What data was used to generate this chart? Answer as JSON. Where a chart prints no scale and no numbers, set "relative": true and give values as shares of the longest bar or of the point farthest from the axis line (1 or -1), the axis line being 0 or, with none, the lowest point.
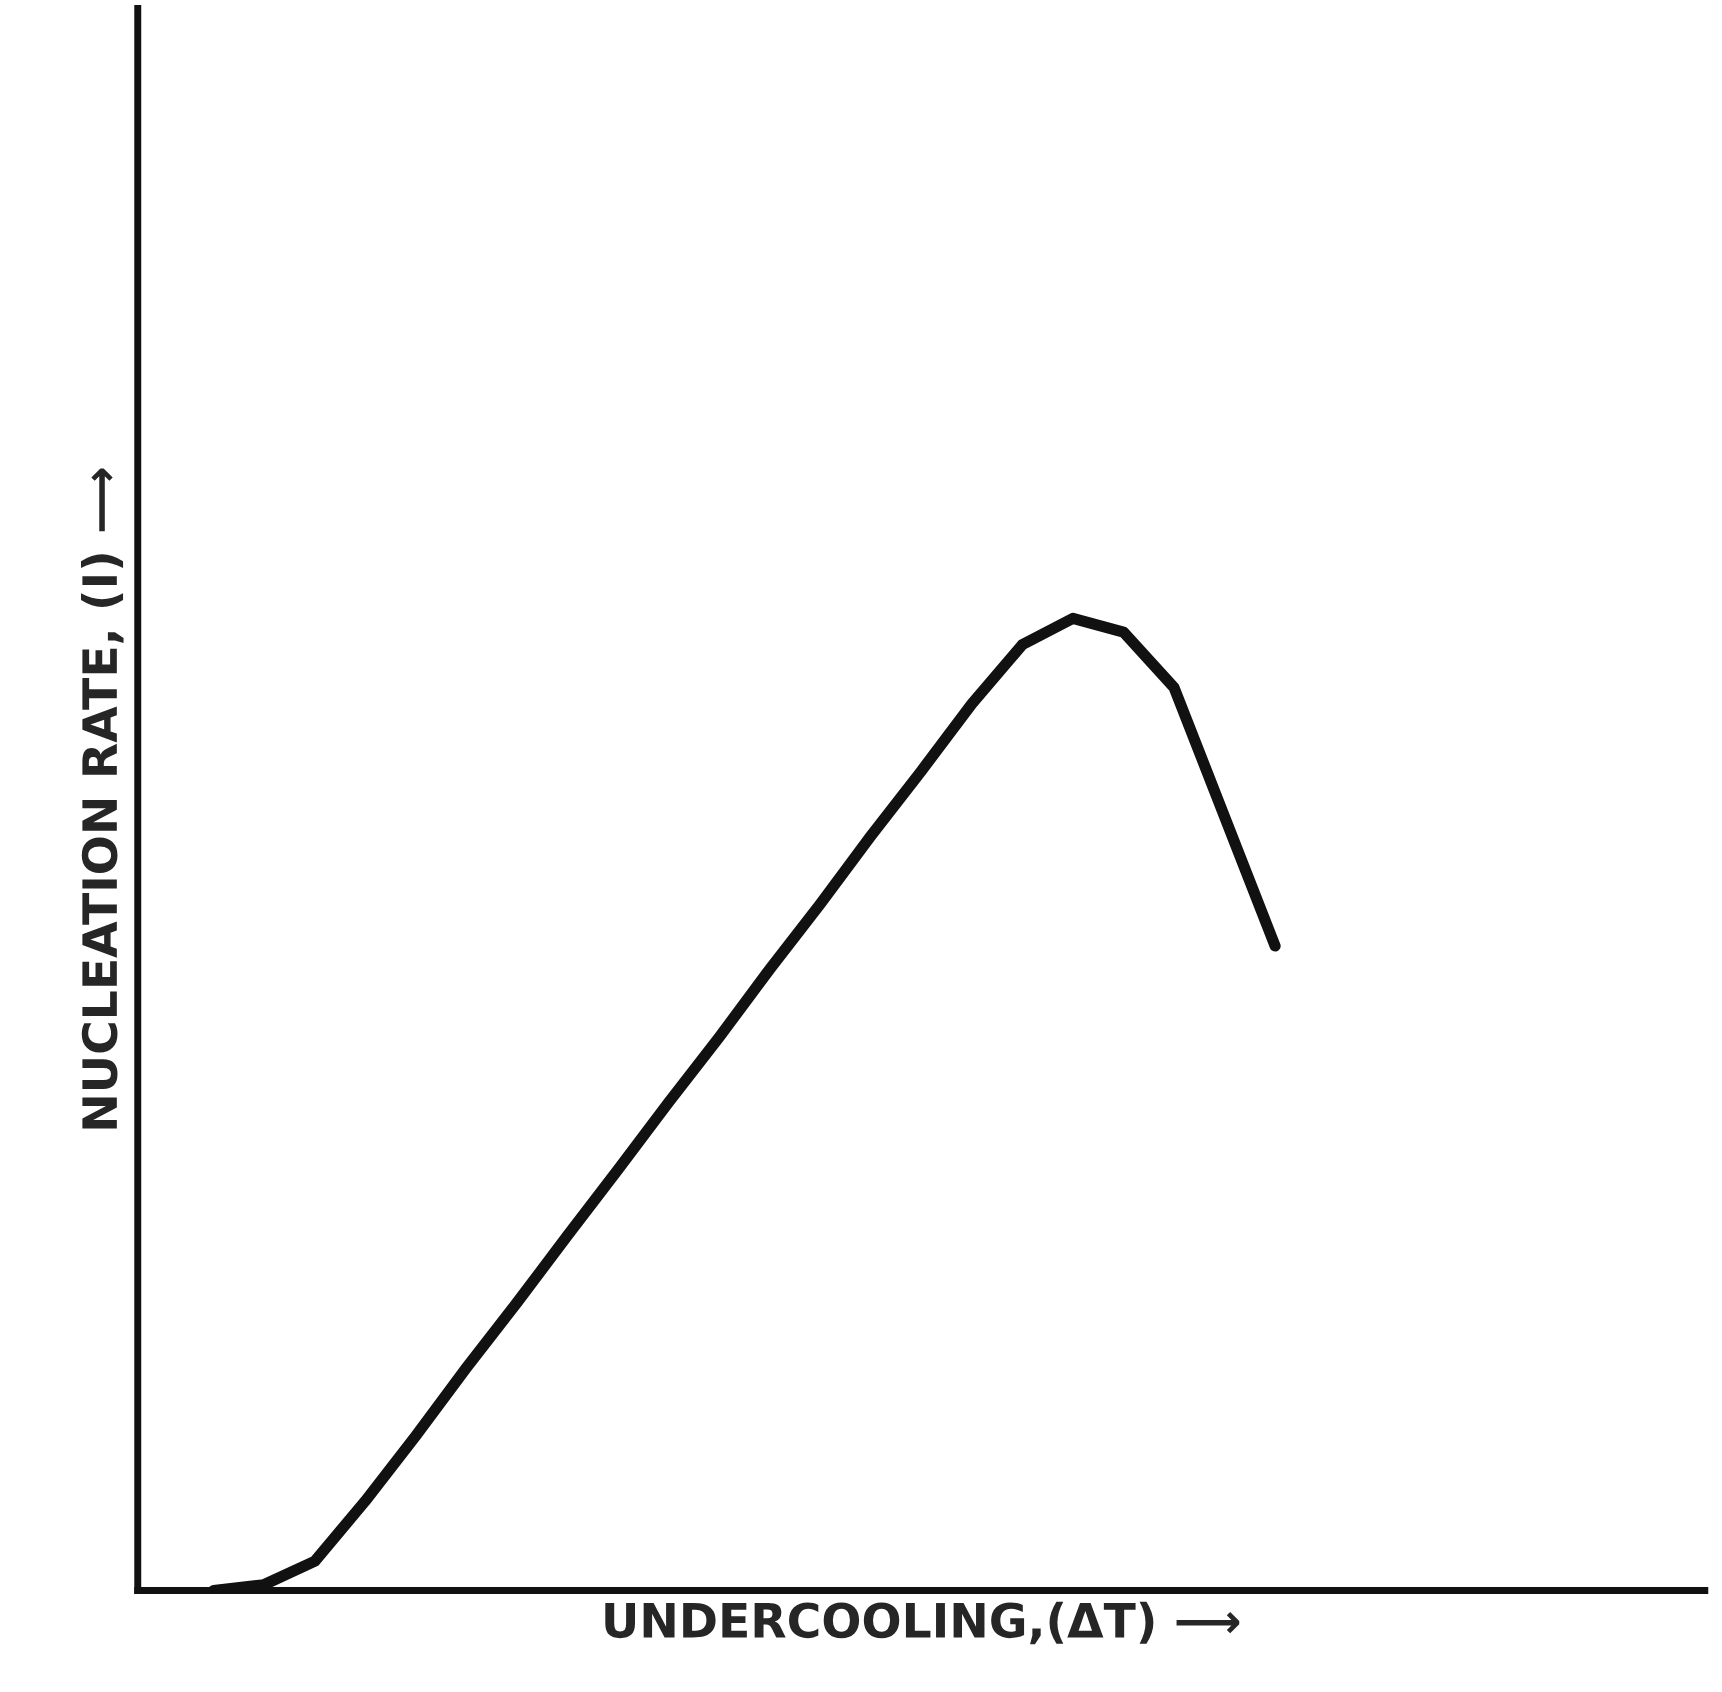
{
  "chart_data": {
    "type": "line",
    "relative": true,
    "xlabel": "UNDERCOOLING,(ΔT) ⟶",
    "ylabel": "NUCLEATION RATE, (I) ⟶",
    "legend": false,
    "marker": "none",
    "line_style": "solid",
    "categories": [
      null,
      null,
      null,
      null,
      null,
      null,
      null,
      null,
      null,
      null,
      null,
      null,
      null,
      null,
      null,
      null,
      null,
      null,
      null,
      null,
      null,
      null,
      null,
      null,
      null,
      null,
      null,
      null,
      null,
      null,
      null
    ],
    "series": [
      {
        "color": "#111111",
        "values": [
          null,
          0,
          0.006,
          0.03,
          0.092,
          0.159,
          0.229,
          0.296,
          0.365,
          0.433,
          0.502,
          0.569,
          0.639,
          0.706,
          0.776,
          0.843,
          0.912,
          0.973,
          1,
          0.986,
          0.929,
          0.796,
          0.663,
          null,
          null,
          null,
          null,
          null,
          null,
          null,
          null
        ]
      }
    ]
  }
}
